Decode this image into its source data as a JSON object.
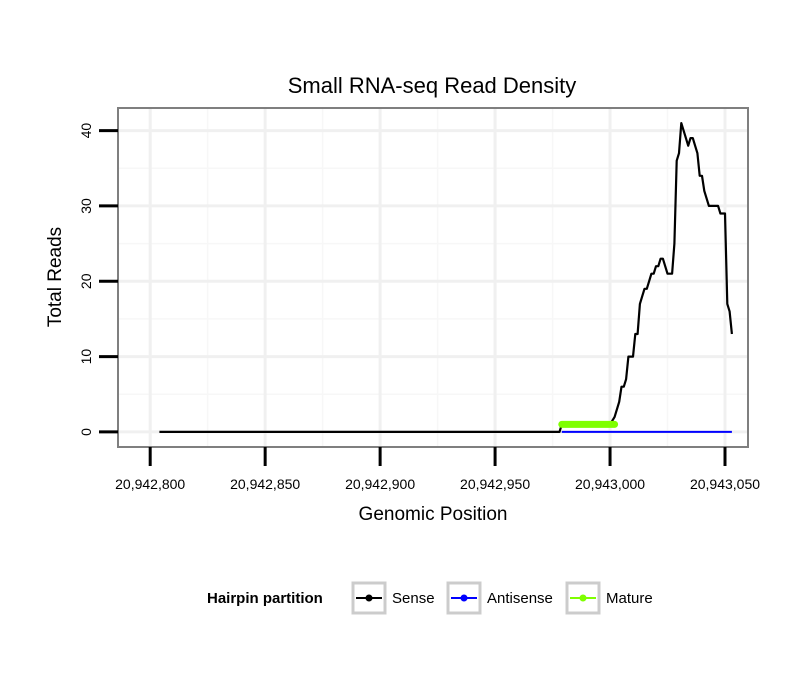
{
  "chart_data": {
    "type": "line",
    "title": "Small RNA-seq Read Density",
    "xlabel": "Genomic Position",
    "ylabel": "Total Reads",
    "xlim": [
      20942786,
      20943060
    ],
    "ylim": [
      -2,
      43
    ],
    "x_ticks": [
      20942800,
      20942850,
      20942900,
      20942950,
      20943000,
      20943050
    ],
    "x_tick_labels": [
      "20,942,800",
      "20,942,850",
      "20,942,900",
      "20,942,950",
      "20,943,000",
      "20,943,050"
    ],
    "y_ticks": [
      0,
      10,
      20,
      30,
      40
    ],
    "y_tick_labels": [
      "0",
      "10",
      "20",
      "30",
      "40"
    ],
    "grid": true,
    "legend": {
      "title": "Hairpin partition",
      "position": "bottom",
      "entries": [
        "Sense",
        "Antisense",
        "Mature"
      ]
    },
    "series": [
      {
        "name": "Sense",
        "color": "#000000",
        "x": [
          20942804,
          20942978,
          20942979,
          20943000,
          20943002,
          20943004,
          20943005,
          20943006,
          20943007,
          20943008,
          20943009,
          20943010,
          20943011,
          20943012,
          20943013,
          20943014,
          20943015,
          20943016,
          20943017,
          20943018,
          20943019,
          20943020,
          20943021,
          20943022,
          20943023,
          20943024,
          20943025,
          20943026,
          20943027,
          20943028,
          20943029,
          20943030,
          20943031,
          20943032,
          20943033,
          20943034,
          20943035,
          20943036,
          20943037,
          20943038,
          20943039,
          20943040,
          20943041,
          20943042,
          20943043,
          20943044,
          20943045,
          20943046,
          20943047,
          20943048,
          20943049,
          20943050,
          20943051,
          20943052,
          20943053
        ],
        "values": [
          0,
          0,
          1,
          1,
          2,
          4,
          6,
          6,
          7,
          10,
          10,
          10,
          13,
          13,
          17,
          18,
          19,
          19,
          20,
          21,
          21,
          22,
          22,
          23,
          23,
          22,
          21,
          21,
          21,
          25,
          36,
          37,
          41,
          40,
          39,
          38,
          39,
          39,
          38,
          37,
          34,
          34,
          32,
          31,
          30,
          30,
          30,
          30,
          30,
          29,
          29,
          29,
          17,
          16,
          13
        ]
      },
      {
        "name": "Antisense",
        "color": "#0000ff",
        "x": [
          20942979,
          20943053
        ],
        "values": [
          0,
          0
        ]
      },
      {
        "name": "Mature",
        "color": "#7fff00",
        "x": [
          20942979,
          20943002
        ],
        "values": [
          1,
          1
        ]
      }
    ]
  }
}
